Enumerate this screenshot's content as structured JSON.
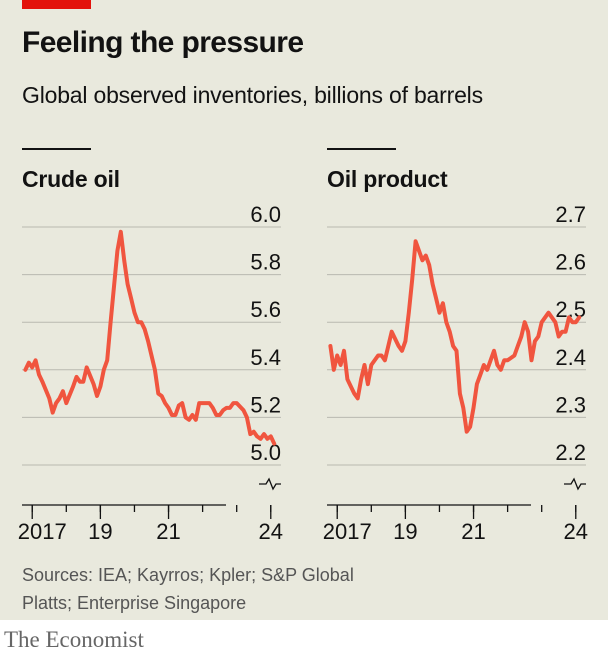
{
  "title": "Feeling the pressure",
  "subtitle": "Global observed inventories, billions of barrels",
  "source": "Sources: IEA; Kayrros; Kpler; S&P Global Platts; Enterprise Singapore",
  "logo": "The Economist",
  "colors": {
    "line": "#f0553f",
    "accent": "#e3120b",
    "grid": "#b9b9b0",
    "axis": "#121212",
    "background": "#e9e9dd"
  },
  "chart_data": [
    {
      "type": "line",
      "title": "Crude oil",
      "ylim": [
        5.0,
        6.0
      ],
      "yticks": [
        "6.0",
        "5.8",
        "5.6",
        "5.4",
        "5.2",
        "5.0"
      ],
      "xlim": [
        2016.7,
        2024.3
      ],
      "xticks": [
        "2017",
        "19",
        "21",
        "24"
      ],
      "xtick_positions": [
        2017,
        2019,
        2021,
        2024
      ],
      "axis_break": true,
      "series": [
        {
          "x": [
            2016.8,
            2016.9,
            2017.0,
            2017.1,
            2017.2,
            2017.3,
            2017.5,
            2017.6,
            2017.7,
            2017.8,
            2017.9,
            2018.0,
            2018.2,
            2018.3,
            2018.4,
            2018.5,
            2018.6,
            2018.8,
            2018.9,
            2019.0,
            2019.1,
            2019.2,
            2019.3,
            2019.5,
            2019.6,
            2019.7,
            2019.8,
            2019.9,
            2020.0,
            2020.1,
            2020.2,
            2020.3,
            2020.4,
            2020.5,
            2020.6,
            2020.7,
            2020.8,
            2020.9,
            2021.0,
            2021.1,
            2021.2,
            2021.3,
            2021.4,
            2021.5,
            2021.6,
            2021.7,
            2021.8,
            2021.9,
            2022.0,
            2022.2,
            2022.3,
            2022.4,
            2022.5,
            2022.6,
            2022.7,
            2022.8,
            2022.9,
            2023.0,
            2023.2,
            2023.3,
            2023.4,
            2023.5,
            2023.6,
            2023.7,
            2023.8,
            2023.9,
            2024.0,
            2024.1
          ],
          "y": [
            5.4,
            5.43,
            5.41,
            5.44,
            5.38,
            5.35,
            5.28,
            5.22,
            5.26,
            5.28,
            5.31,
            5.26,
            5.33,
            5.37,
            5.35,
            5.35,
            5.41,
            5.34,
            5.29,
            5.33,
            5.4,
            5.44,
            5.6,
            5.9,
            5.98,
            5.86,
            5.76,
            5.7,
            5.64,
            5.6,
            5.6,
            5.57,
            5.52,
            5.46,
            5.4,
            5.3,
            5.29,
            5.26,
            5.24,
            5.21,
            5.21,
            5.25,
            5.26,
            5.2,
            5.19,
            5.21,
            5.19,
            5.26,
            5.26,
            5.26,
            5.24,
            5.21,
            5.21,
            5.23,
            5.24,
            5.24,
            5.26,
            5.26,
            5.23,
            5.2,
            5.13,
            5.14,
            5.12,
            5.11,
            5.13,
            5.11,
            5.12,
            5.09
          ]
        }
      ]
    },
    {
      "type": "line",
      "title": "Oil product",
      "ylim": [
        2.2,
        2.7
      ],
      "yticks": [
        "2.7",
        "2.6",
        "2.5",
        "2.4",
        "2.3",
        "2.2"
      ],
      "xlim": [
        2016.7,
        2024.3
      ],
      "xticks": [
        "2017",
        "19",
        "21",
        "24"
      ],
      "xtick_positions": [
        2017,
        2019,
        2021,
        2024
      ],
      "axis_break": true,
      "series": [
        {
          "x": [
            2016.8,
            2016.9,
            2017.0,
            2017.1,
            2017.2,
            2017.3,
            2017.5,
            2017.6,
            2017.7,
            2017.8,
            2017.9,
            2018.0,
            2018.2,
            2018.3,
            2018.4,
            2018.5,
            2018.6,
            2018.8,
            2018.9,
            2019.0,
            2019.1,
            2019.2,
            2019.3,
            2019.5,
            2019.6,
            2019.7,
            2019.8,
            2019.9,
            2020.0,
            2020.1,
            2020.2,
            2020.3,
            2020.4,
            2020.5,
            2020.6,
            2020.7,
            2020.8,
            2020.9,
            2021.0,
            2021.1,
            2021.2,
            2021.3,
            2021.4,
            2021.5,
            2021.6,
            2021.7,
            2021.8,
            2021.9,
            2022.0,
            2022.2,
            2022.3,
            2022.4,
            2022.5,
            2022.6,
            2022.7,
            2022.8,
            2022.9,
            2023.0,
            2023.2,
            2023.3,
            2023.4,
            2023.5,
            2023.6,
            2023.7,
            2023.8,
            2023.9,
            2024.0,
            2024.1
          ],
          "y": [
            2.45,
            2.4,
            2.43,
            2.41,
            2.44,
            2.38,
            2.35,
            2.34,
            2.38,
            2.41,
            2.37,
            2.41,
            2.43,
            2.43,
            2.42,
            2.45,
            2.48,
            2.45,
            2.44,
            2.46,
            2.52,
            2.59,
            2.67,
            2.63,
            2.64,
            2.62,
            2.58,
            2.55,
            2.52,
            2.54,
            2.5,
            2.48,
            2.45,
            2.44,
            2.35,
            2.32,
            2.27,
            2.28,
            2.32,
            2.37,
            2.39,
            2.41,
            2.4,
            2.42,
            2.44,
            2.41,
            2.4,
            2.42,
            2.42,
            2.43,
            2.45,
            2.47,
            2.5,
            2.48,
            2.42,
            2.46,
            2.47,
            2.5,
            2.52,
            2.51,
            2.5,
            2.47,
            2.48,
            2.48,
            2.51,
            2.5,
            2.5,
            2.51
          ]
        }
      ]
    }
  ]
}
